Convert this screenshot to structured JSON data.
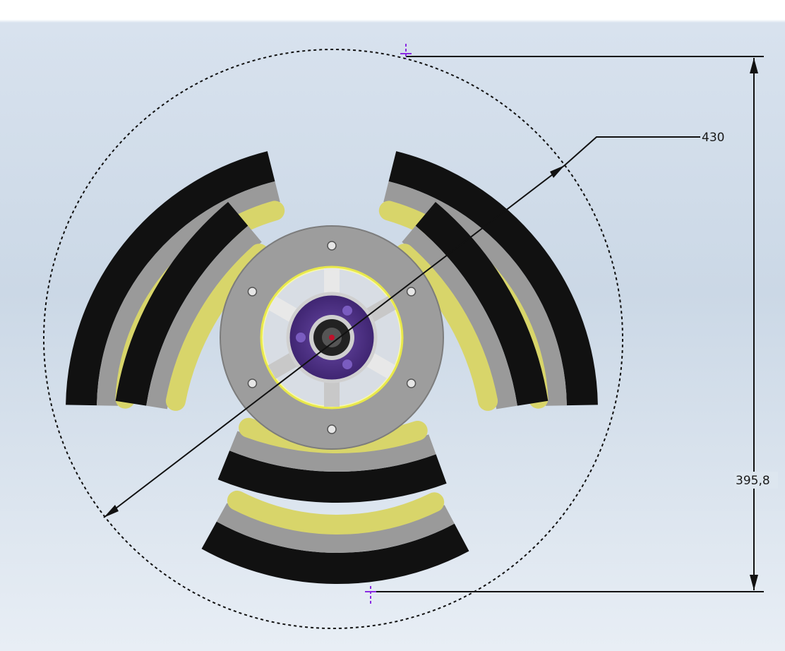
{
  "viewport": {
    "background_top": "#ffffff",
    "background_mid": "#cfdbe8",
    "background_bottom": "#e9eff6"
  },
  "dimensions": {
    "diameter_value": "430",
    "height_value": "395,8"
  },
  "colors": {
    "tire_black": "#111111",
    "frame_gray": "#9a9a9a",
    "roller_yellow": "#d8d56a",
    "hub_gray": "#a3a3a3",
    "hub_purple": "#4b2d83",
    "dimension_line": "#111111",
    "point_marker": "#8a2be2"
  },
  "icons": {
    "bolt": "hex-bolt-icon",
    "axis_center": "axis-center-icon"
  }
}
